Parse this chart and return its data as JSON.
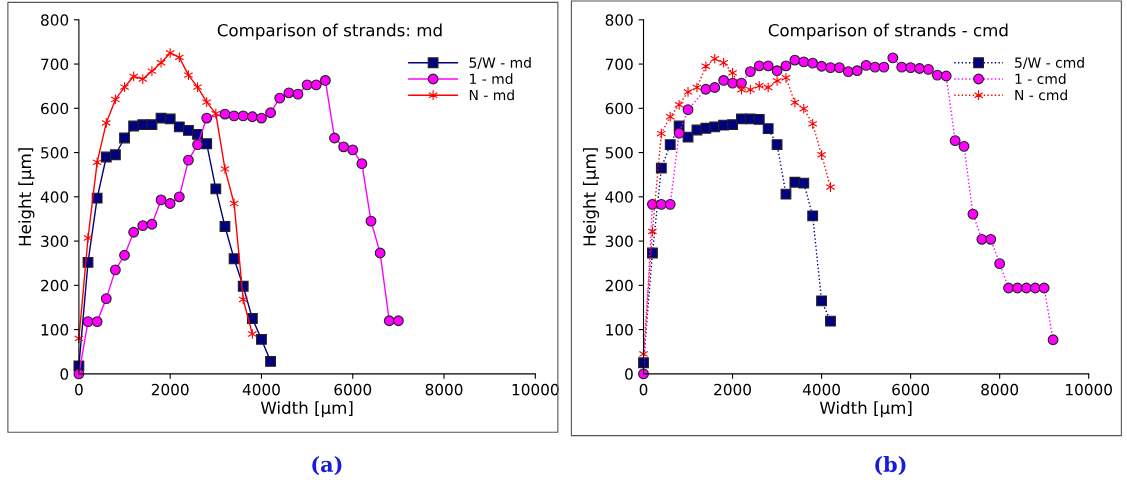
{
  "chart_data": [
    {
      "type": "line",
      "title": "Comparison of strands: md",
      "xlabel": "Width [µm]",
      "ylabel": "Height [µm]",
      "xlim": [
        0,
        10000
      ],
      "xticks": [
        0,
        2000,
        4000,
        6000,
        8000,
        10000
      ],
      "ylim": [
        0,
        800
      ],
      "yticks": [
        0,
        100,
        200,
        300,
        400,
        500,
        600,
        700,
        800
      ],
      "grid": false,
      "legend": "top right",
      "line_style": "solid",
      "annotations": [
        "(a)"
      ],
      "series": [
        {
          "name": "5/W - md",
          "color": "#000080",
          "marker": "square",
          "x": [
            0,
            200,
            400,
            600,
            800,
            1000,
            1200,
            1400,
            1600,
            1800,
            2000,
            2200,
            2400,
            2600,
            2800,
            3000,
            3200,
            3400,
            3600,
            3800,
            4000,
            4200
          ],
          "values": [
            18,
            252,
            397,
            490,
            495,
            533,
            560,
            563,
            563,
            578,
            576,
            558,
            550,
            541,
            520,
            418,
            333,
            260,
            198,
            125,
            78,
            28
          ]
        },
        {
          "name": "1 - md",
          "color": "#ff00ff",
          "marker": "circle",
          "x": [
            0,
            200,
            400,
            600,
            800,
            1000,
            1200,
            1400,
            1600,
            1800,
            2000,
            2200,
            2400,
            2600,
            2800,
            3200,
            3400,
            3600,
            3800,
            4000,
            4200,
            4400,
            4600,
            4800,
            5000,
            5200,
            5400,
            5600,
            5800,
            6000,
            6200,
            6400,
            6600,
            6800,
            7000
          ],
          "values": [
            0,
            118,
            118,
            170,
            235,
            268,
            320,
            335,
            338,
            393,
            385,
            400,
            483,
            518,
            578,
            587,
            583,
            583,
            581,
            578,
            590,
            623,
            635,
            632,
            653,
            653,
            663,
            533,
            513,
            506,
            475,
            345,
            273,
            120,
            120
          ]
        },
        {
          "name": "N - md",
          "color": "#ff0000",
          "marker": "cross",
          "x": [
            0,
            200,
            400,
            600,
            800,
            1000,
            1200,
            1400,
            1600,
            1800,
            2000,
            2200,
            2400,
            2600,
            2800,
            3000,
            3200,
            3400,
            3600,
            3800
          ],
          "values": [
            80,
            307,
            478,
            567,
            620,
            648,
            672,
            666,
            684,
            703,
            725,
            715,
            675,
            648,
            614,
            588,
            463,
            385,
            168,
            90
          ]
        }
      ]
    },
    {
      "type": "line",
      "title": "Comparison of strands - cmd",
      "xlabel": "Width [µm]",
      "ylabel": "Height [µm]",
      "xlim": [
        0,
        10000
      ],
      "xticks": [
        0,
        2000,
        4000,
        6000,
        8000,
        10000
      ],
      "ylim": [
        0,
        800
      ],
      "yticks": [
        0,
        100,
        200,
        300,
        400,
        500,
        600,
        700,
        800
      ],
      "grid": false,
      "legend": "top right",
      "line_style": "dotted",
      "annotations": [
        "(b)"
      ],
      "series": [
        {
          "name": "5/W - cmd",
          "color": "#000080",
          "marker": "square",
          "x": [
            0,
            200,
            400,
            600,
            800,
            1000,
            1200,
            1400,
            1600,
            1800,
            2000,
            2200,
            2400,
            2600,
            2800,
            3000,
            3200,
            3400,
            3600,
            3800,
            4000,
            4200
          ],
          "values": [
            25,
            273,
            465,
            518,
            560,
            535,
            551,
            555,
            558,
            562,
            563,
            576,
            576,
            575,
            554,
            518,
            406,
            433,
            431,
            357,
            165,
            119
          ]
        },
        {
          "name": "1 - cmd",
          "color": "#ff00ff",
          "marker": "circle",
          "x": [
            0,
            200,
            400,
            600,
            800,
            1000,
            1400,
            1600,
            1800,
            2000,
            2200,
            2400,
            2600,
            2800,
            3000,
            3200,
            3400,
            3600,
            3800,
            4000,
            4200,
            4400,
            4600,
            4800,
            5000,
            5200,
            5400,
            5600,
            5800,
            6000,
            6200,
            6400,
            6600,
            6800,
            7000,
            7200,
            7400,
            7600,
            7800,
            8000,
            8200,
            8400,
            8600,
            8800,
            9000,
            9200
          ],
          "values": [
            0,
            383,
            383,
            383,
            544,
            597,
            643,
            647,
            663,
            657,
            657,
            683,
            696,
            696,
            685,
            696,
            709,
            705,
            702,
            695,
            692,
            692,
            683,
            685,
            697,
            693,
            693,
            714,
            693,
            692,
            690,
            688,
            675,
            673,
            527,
            514,
            361,
            304,
            304,
            249,
            194,
            194,
            194,
            194,
            194,
            77
          ]
        },
        {
          "name": "N - cmd",
          "color": "#ff0000",
          "marker": "cross",
          "x": [
            0,
            200,
            400,
            600,
            800,
            1000,
            1200,
            1400,
            1600,
            1800,
            2000,
            2200,
            2400,
            2600,
            2800,
            3000,
            3200,
            3400,
            3600,
            3800,
            4000,
            4200
          ],
          "values": [
            45,
            322,
            543,
            581,
            608,
            637,
            647,
            695,
            712,
            703,
            680,
            642,
            642,
            651,
            647,
            662,
            669,
            613,
            599,
            565,
            495,
            422
          ]
        }
      ]
    }
  ]
}
